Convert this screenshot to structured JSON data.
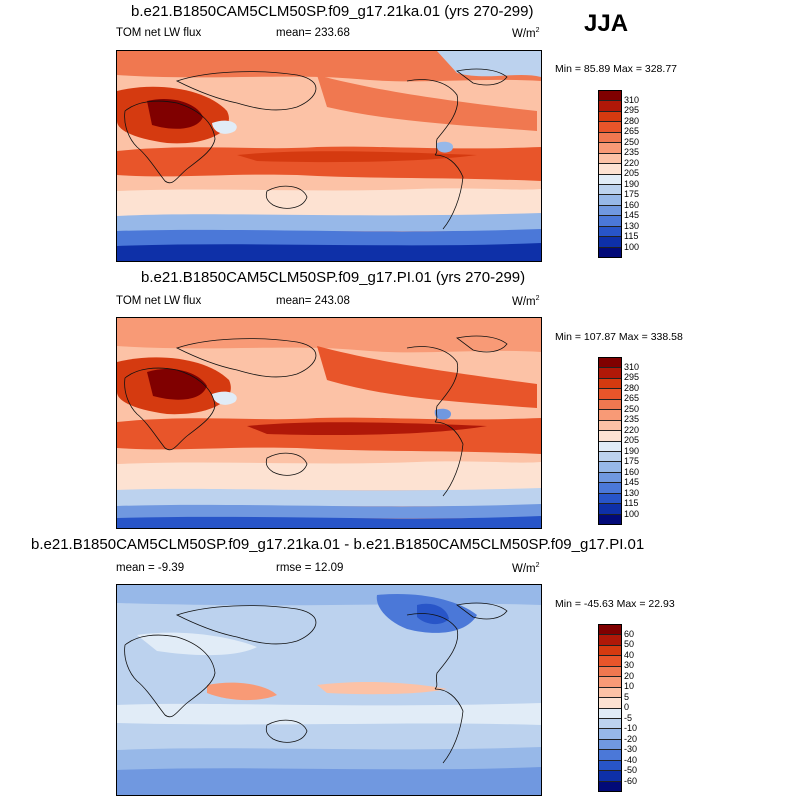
{
  "season": "JJA",
  "panels": [
    {
      "title": "b.e21.B1850CAM5CLM50SP.f09_g17.21ka.01 (yrs 270-299)",
      "left_label": "TOM net LW flux",
      "center_label": "mean= 233.68",
      "units": "W/m",
      "units_exp": "2",
      "minmax": "Min =  85.89 Max = 328.77",
      "colorbar": {
        "labels": [
          "310",
          "295",
          "280",
          "265",
          "250",
          "235",
          "220",
          "205",
          "190",
          "175",
          "160",
          "145",
          "130",
          "115",
          "100"
        ],
        "colors": [
          "#800000",
          "#b01808",
          "#d53a10",
          "#e8552a",
          "#f07850",
          "#f89a76",
          "#fcc2a6",
          "#fde2d2",
          "#e1ecf7",
          "#bcd2ee",
          "#97b8e8",
          "#7098e0",
          "#4b78d8",
          "#2855c8",
          "#0e30a8",
          "#020a78"
        ]
      }
    },
    {
      "title": "b.e21.B1850CAM5CLM50SP.f09_g17.PI.01 (yrs 270-299)",
      "left_label": "TOM net LW flux",
      "center_label": "mean= 243.08",
      "units": "W/m",
      "units_exp": "2",
      "minmax": "Min = 107.87 Max = 338.58",
      "colorbar": {
        "labels": [
          "310",
          "295",
          "280",
          "265",
          "250",
          "235",
          "220",
          "205",
          "190",
          "175",
          "160",
          "145",
          "130",
          "115",
          "100"
        ],
        "colors": [
          "#800000",
          "#b01808",
          "#d53a10",
          "#e8552a",
          "#f07850",
          "#f89a76",
          "#fcc2a6",
          "#fde2d2",
          "#e1ecf7",
          "#bcd2ee",
          "#97b8e8",
          "#7098e0",
          "#4b78d8",
          "#2855c8",
          "#0e30a8",
          "#020a78"
        ]
      }
    },
    {
      "title": "b.e21.B1850CAM5CLM50SP.f09_g17.21ka.01 - b.e21.B1850CAM5CLM50SP.f09_g17.PI.01",
      "left_label": "mean =  -9.39",
      "center_label": "rmse =  12.09",
      "units": "W/m",
      "units_exp": "2",
      "minmax": "Min = -45.63 Max =  22.93",
      "colorbar": {
        "labels": [
          "60",
          "50",
          "40",
          "30",
          "20",
          "10",
          "5",
          "0",
          "-5",
          "-10",
          "-20",
          "-30",
          "-40",
          "-50",
          "-60"
        ],
        "colors": [
          "#800000",
          "#b01808",
          "#d53a10",
          "#e8552a",
          "#f07850",
          "#f89a76",
          "#fcc2a6",
          "#fde2d2",
          "#e1ecf7",
          "#bcd2ee",
          "#97b8e8",
          "#7098e0",
          "#4b78d8",
          "#2855c8",
          "#0e30a8",
          "#020a78"
        ]
      }
    }
  ]
}
